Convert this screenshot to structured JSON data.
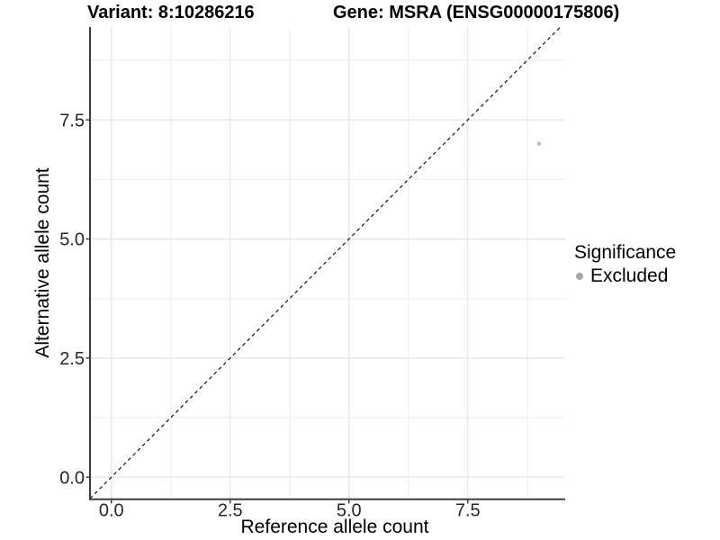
{
  "titles": {
    "variant": "Variant: 8:10286216",
    "gene": "Gene: MSRA (ENSG00000175806)"
  },
  "axes": {
    "x_label": "Reference allele count",
    "y_label": "Alternative allele count"
  },
  "legend": {
    "title": "Significance",
    "position": "right",
    "items": [
      {
        "label": "Excluded",
        "color": "#a6a6a6"
      }
    ]
  },
  "chart_data": {
    "type": "scatter",
    "title_left": "Variant: 8:10286216",
    "title_right": "Gene: MSRA (ENSG00000175806)",
    "xlabel": "Reference allele count",
    "ylabel": "Alternative allele count",
    "xlim": [
      -0.45,
      9.55
    ],
    "ylim": [
      -0.45,
      9.45
    ],
    "x_ticks": [
      0,
      2.5,
      5,
      7.5
    ],
    "x_tick_labels": [
      "0.0",
      "2.5",
      "5.0",
      "7.5"
    ],
    "y_ticks": [
      0,
      2.5,
      5,
      7.5
    ],
    "y_tick_labels": [
      "0.0",
      "2.5",
      "5.0",
      "7.5"
    ],
    "x_minor": [
      1.25,
      3.75,
      6.25,
      8.75
    ],
    "y_minor": [
      1.25,
      3.75,
      6.25,
      8.75
    ],
    "grid": "major+minor",
    "identity_line": {
      "type": "dashed",
      "slope": 1,
      "intercept": 0,
      "from": -0.45,
      "to": 9.45,
      "color": "#111111"
    },
    "series": [
      {
        "name": "Excluded",
        "color": "#c3c3c3",
        "point_radius": 2.4,
        "points": [
          {
            "x": 9,
            "y": 7
          }
        ]
      }
    ],
    "legend": {
      "title": "Significance",
      "position": "right",
      "items": [
        {
          "label": "Excluded",
          "color": "#a6a6a6"
        }
      ]
    },
    "style": {
      "background": "#ffffff",
      "grid_major": "#e3e3e3",
      "grid_minor": "#ededed",
      "axis_line": "#3d3d3d",
      "tick_color": "#333333",
      "tick_text_color": "#262626",
      "tick_font_size": 20
    }
  }
}
